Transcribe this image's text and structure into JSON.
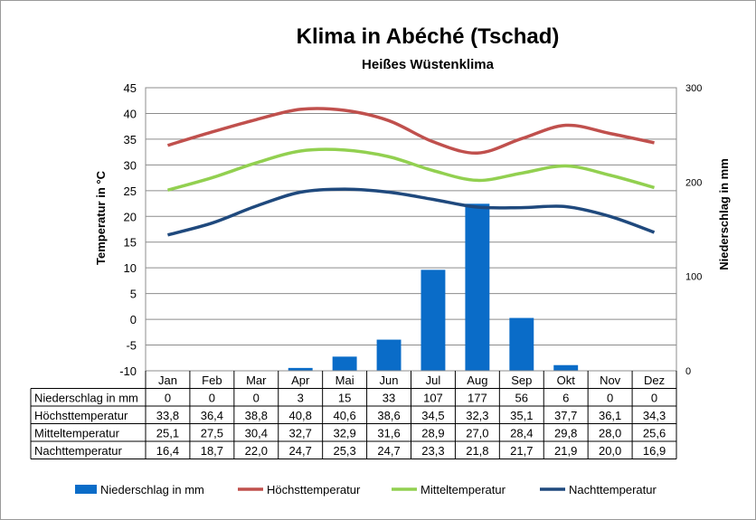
{
  "title": "Klima in Abéché (Tschad)",
  "subtitle": "Heißes Wüstenklima",
  "chart_data": {
    "type": "bar+line",
    "categories": [
      "Jan",
      "Feb",
      "Mar",
      "Apr",
      "Mai",
      "Jun",
      "Jul",
      "Aug",
      "Sep",
      "Okt",
      "Nov",
      "Dez"
    ],
    "ylabel_left": "Temperatur in °C",
    "ylabel_right": "Niederschlag in mm",
    "ylim_left": [
      -10,
      45
    ],
    "ylim_right": [
      0,
      300
    ],
    "yticks_left": [
      "45",
      "40",
      "35",
      "30",
      "25",
      "20",
      "15",
      "10",
      "5",
      "0",
      "-5",
      "-10"
    ],
    "yticks_right": [
      "300",
      "200",
      "100",
      "0"
    ],
    "grid": true,
    "legend_position": "bottom",
    "series": [
      {
        "name": "Niederschlag in mm",
        "kind": "bar",
        "axis": "right",
        "color": "#0a6cc8",
        "values": [
          0,
          0,
          0,
          3,
          15,
          33,
          107,
          177,
          56,
          6,
          0,
          0
        ],
        "labels": [
          "0",
          "0",
          "0",
          "3",
          "15",
          "33",
          "107",
          "177",
          "56",
          "6",
          "0",
          "0"
        ]
      },
      {
        "name": "Höchsttemperatur",
        "kind": "line",
        "axis": "left",
        "color": "#c0504d",
        "values": [
          33.8,
          36.4,
          38.8,
          40.8,
          40.6,
          38.6,
          34.5,
          32.3,
          35.1,
          37.7,
          36.1,
          34.3
        ],
        "labels": [
          "33,8",
          "36,4",
          "38,8",
          "40,8",
          "40,6",
          "38,6",
          "34,5",
          "32,3",
          "35,1",
          "37,7",
          "36,1",
          "34,3"
        ]
      },
      {
        "name": "Mitteltemperatur",
        "kind": "line",
        "axis": "left",
        "color": "#92d050",
        "values": [
          25.1,
          27.5,
          30.4,
          32.7,
          32.9,
          31.6,
          28.9,
          27.0,
          28.4,
          29.8,
          28.0,
          25.6
        ],
        "labels": [
          "25,1",
          "27,5",
          "30,4",
          "32,7",
          "32,9",
          "31,6",
          "28,9",
          "27,0",
          "28,4",
          "29,8",
          "28,0",
          "25,6"
        ]
      },
      {
        "name": "Nachttemperatur",
        "kind": "line",
        "axis": "left",
        "color": "#1f497d",
        "values": [
          16.4,
          18.7,
          22.0,
          24.7,
          25.3,
          24.7,
          23.3,
          21.8,
          21.7,
          21.9,
          20.0,
          16.9
        ],
        "labels": [
          "16,4",
          "18,7",
          "22,0",
          "24,7",
          "25,3",
          "24,7",
          "23,3",
          "21,8",
          "21,7",
          "21,9",
          "20,0",
          "16,9"
        ]
      }
    ]
  }
}
